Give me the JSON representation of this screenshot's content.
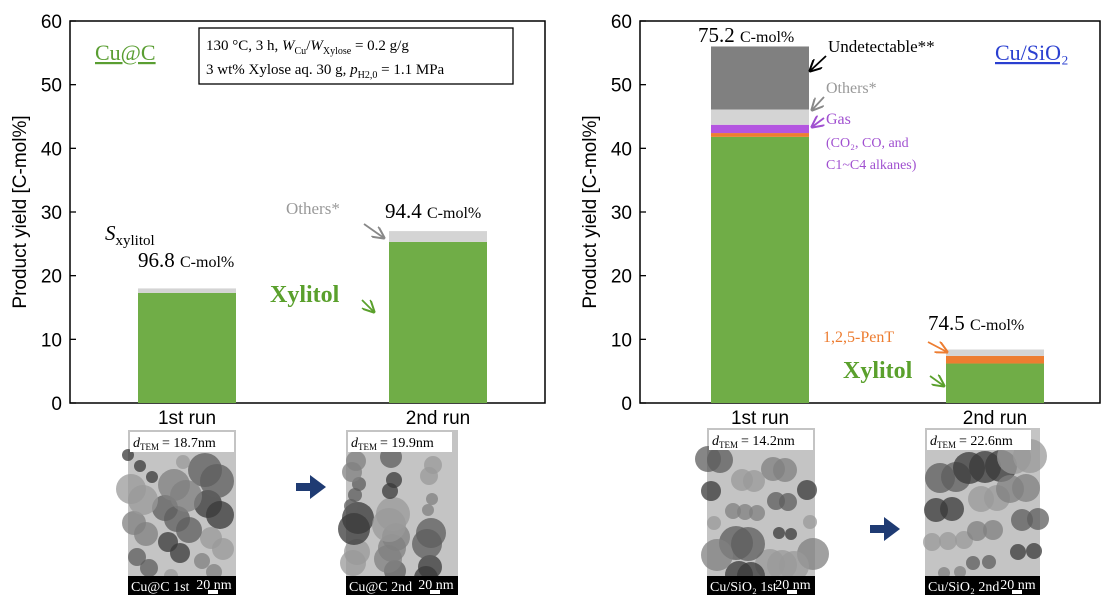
{
  "chart_data": [
    {
      "type": "bar",
      "stacked": true,
      "title": "Cu@C",
      "title_color": "#5a9e32",
      "y_label": "Product yield [C-mol%]",
      "categories": [
        "1st run",
        "2nd run"
      ],
      "series": [
        {
          "name": "Xylitol",
          "color": "#70ad47",
          "values": [
            17.3,
            25.3
          ]
        },
        {
          "name": "Others*",
          "color": "#d4d4d4",
          "values": [
            0.7,
            1.7
          ]
        }
      ],
      "selectivity": {
        "symbol": "S",
        "subscript": "xylitol",
        "values": [
          96.8,
          94.4
        ],
        "unit": "C-mol%"
      },
      "conditions": [
        [
          "130 °C, 3 h, ",
          "W",
          "Cu",
          "/",
          "W",
          "Xylose",
          " = 0.2 g/g"
        ],
        [
          "3 wt% Xylose aq. 30 g, ",
          "p",
          "H2,0",
          " = 1.1 MPa"
        ]
      ],
      "ylim": [
        0,
        60
      ],
      "yticks": [
        0,
        10,
        20,
        30,
        40,
        50,
        60
      ]
    },
    {
      "type": "bar",
      "stacked": true,
      "title": "Cu/SiO₂",
      "title_color": "#2a3fd0",
      "y_label": "Product yield [C-mol%]",
      "categories": [
        "1st run",
        "2nd run"
      ],
      "series": [
        {
          "name": "Xylitol",
          "color": "#70ad47",
          "values": [
            41.8,
            6.2
          ]
        },
        {
          "name": "1,2,5-PenT",
          "color": "#ed7d31",
          "values": [
            0.6,
            1.2
          ]
        },
        {
          "name": "Gas",
          "color": "#b455e0",
          "values": [
            1.3,
            0
          ]
        },
        {
          "name": "Others*",
          "color": "#d4d4d4",
          "values": [
            2.4,
            1.0
          ]
        },
        {
          "name": "Undetectable**",
          "color": "#808080",
          "values": [
            9.9,
            0
          ]
        }
      ],
      "gas_note": [
        "(CO₂, CO, and",
        "C1~C4 alkanes)"
      ],
      "selectivity": {
        "values": [
          75.2,
          74.5
        ],
        "unit": "C-mol%"
      },
      "ylim": [
        0,
        60
      ],
      "yticks": [
        0,
        10,
        20,
        30,
        40,
        50,
        60
      ]
    }
  ],
  "tem_images": [
    {
      "d_symbol": "d",
      "d_subscript": "TEM",
      "d_value": "= 18.7nm",
      "label": "Cu@C 1st",
      "scale": "20 nm"
    },
    {
      "d_symbol": "d",
      "d_subscript": "TEM",
      "d_value": "= 19.9nm",
      "label": "Cu@C 2nd",
      "scale": "20 nm"
    },
    {
      "d_symbol": "d",
      "d_subscript": "TEM",
      "d_value": "= 14.2nm",
      "label": "Cu/SiO₂ 1st",
      "scale": "20 nm"
    },
    {
      "d_symbol": "d",
      "d_subscript": "TEM",
      "d_value": "= 22.6nm",
      "label": "Cu/SiO₂ 2nd",
      "scale": "20 nm"
    }
  ]
}
